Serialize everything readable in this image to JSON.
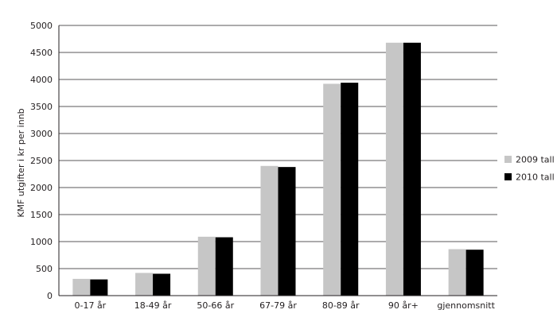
{
  "chart_data": {
    "type": "bar",
    "title": "",
    "xlabel": "",
    "ylabel": "KMF utgifter i kr per innb",
    "ylim": [
      0,
      5000
    ],
    "yticks": [
      0,
      500,
      1000,
      1500,
      2000,
      2500,
      3000,
      3500,
      4000,
      4500,
      5000
    ],
    "grid": true,
    "legend_position": "right",
    "categories": [
      "0-17 år",
      "18-49 år",
      "50-66 år",
      "67-79 år",
      "80-89 år",
      "90 år+",
      "gjennomsnitt"
    ],
    "series": [
      {
        "name": "2009 tall",
        "color": "#c6c6c6",
        "values": [
          310,
          420,
          1090,
          2400,
          3920,
          4680,
          860
        ]
      },
      {
        "name": "2010 tall",
        "color": "#000000",
        "values": [
          300,
          405,
          1080,
          2380,
          3940,
          4680,
          850
        ]
      }
    ]
  }
}
